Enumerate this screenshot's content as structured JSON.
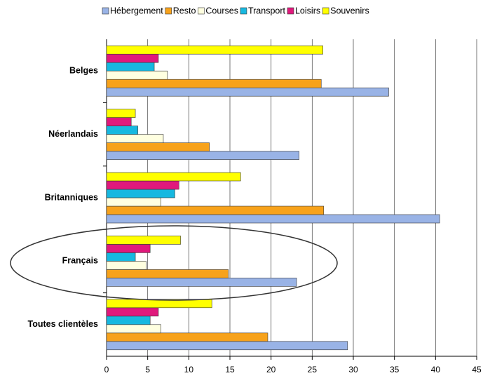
{
  "chart_data": {
    "type": "hbar",
    "categories": [
      "Belges",
      "Néerlandais",
      "Britanniques",
      "Français",
      "Toutes clientèles"
    ],
    "series": [
      {
        "name": "Hébergement",
        "color": "#99b3e6",
        "values": [
          34.3,
          23.4,
          40.5,
          23.1,
          29.3
        ]
      },
      {
        "name": "Resto",
        "color": "#f7a21b",
        "values": [
          26.1,
          12.5,
          26.4,
          14.8,
          19.6
        ]
      },
      {
        "name": "Courses",
        "color": "#ffffe0",
        "values": [
          7.4,
          6.9,
          6.6,
          4.8,
          6.6
        ]
      },
      {
        "name": "Transport",
        "color": "#17b8e0",
        "values": [
          5.8,
          3.8,
          8.3,
          3.5,
          5.3
        ]
      },
      {
        "name": "Loisirs",
        "color": "#e0197c",
        "values": [
          6.3,
          3.0,
          8.8,
          5.3,
          6.3
        ]
      },
      {
        "name": "Souvenirs",
        "color": "#ffff00",
        "values": [
          26.3,
          3.5,
          16.3,
          9.0,
          12.8
        ]
      }
    ],
    "xlim": [
      0,
      45
    ],
    "xticks": [
      0,
      5,
      10,
      15,
      20,
      25,
      30,
      35,
      40,
      45
    ],
    "grid": true
  }
}
